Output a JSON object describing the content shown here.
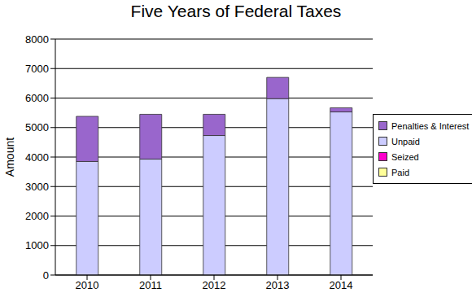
{
  "chart_data": {
    "type": "bar",
    "title": "Five Years of Federal Taxes",
    "y_label": "Amount",
    "categories": [
      "2010",
      "2011",
      "2012",
      "2013",
      "2014"
    ],
    "series": [
      {
        "name": "Paid",
        "color": "#ffff99",
        "values": [
          0,
          0,
          0,
          0,
          0
        ]
      },
      {
        "name": "Seized",
        "color": "#ff00cc",
        "values": [
          0,
          0,
          0,
          0,
          0
        ]
      },
      {
        "name": "Unpaid",
        "color": "#ccccff",
        "values": [
          3850,
          3930,
          4730,
          5980,
          5530
        ]
      },
      {
        "name": "Penalties & Interest",
        "color": "#9966cc",
        "values": [
          1530,
          1520,
          720,
          720,
          140
        ]
      }
    ],
    "stacked": true,
    "ylim": [
      0,
      8000
    ],
    "yticks": [
      0,
      1000,
      2000,
      3000,
      4000,
      5000,
      6000,
      7000,
      8000
    ],
    "grid": true,
    "legend": "right"
  }
}
